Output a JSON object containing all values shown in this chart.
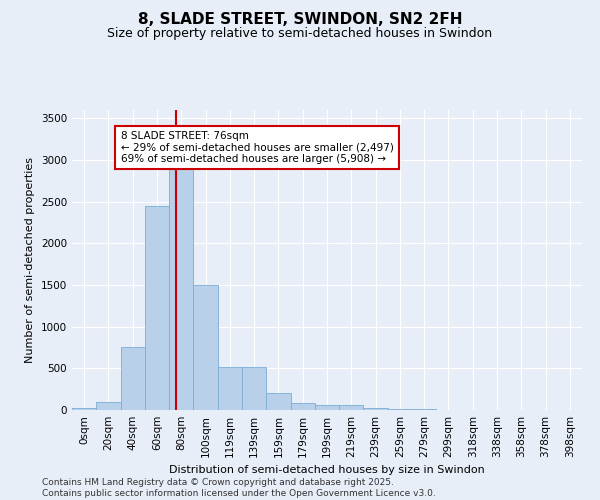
{
  "title": "8, SLADE STREET, SWINDON, SN2 2FH",
  "subtitle": "Size of property relative to semi-detached houses in Swindon",
  "xlabel": "Distribution of semi-detached houses by size in Swindon",
  "ylabel": "Number of semi-detached properties",
  "categories": [
    "0sqm",
    "20sqm",
    "40sqm",
    "60sqm",
    "80sqm",
    "100sqm",
    "119sqm",
    "139sqm",
    "159sqm",
    "179sqm",
    "199sqm",
    "219sqm",
    "239sqm",
    "259sqm",
    "279sqm",
    "299sqm",
    "318sqm",
    "338sqm",
    "358sqm",
    "378sqm",
    "398sqm"
  ],
  "values": [
    20,
    100,
    760,
    2450,
    2900,
    1500,
    520,
    520,
    200,
    80,
    60,
    55,
    20,
    15,
    10,
    5,
    5,
    2,
    1,
    1,
    0
  ],
  "bar_color": "#b8d0ea",
  "bar_edge_color": "#7aadd4",
  "vline_color": "#cc0000",
  "vline_x_index": 3.8,
  "annotation_text": "8 SLADE STREET: 76sqm\n← 29% of semi-detached houses are smaller (2,497)\n69% of semi-detached houses are larger (5,908) →",
  "annotation_box_facecolor": "#ffffff",
  "annotation_box_edgecolor": "#cc0000",
  "ylim": [
    0,
    3600
  ],
  "yticks": [
    0,
    500,
    1000,
    1500,
    2000,
    2500,
    3000,
    3500
  ],
  "footer": "Contains HM Land Registry data © Crown copyright and database right 2025.\nContains public sector information licensed under the Open Government Licence v3.0.",
  "bg_color": "#e8eef8",
  "title_fontsize": 11,
  "subtitle_fontsize": 9,
  "axis_label_fontsize": 8,
  "tick_fontsize": 7.5,
  "annotation_fontsize": 7.5,
  "footer_fontsize": 6.5,
  "ylabel_fontsize": 8
}
